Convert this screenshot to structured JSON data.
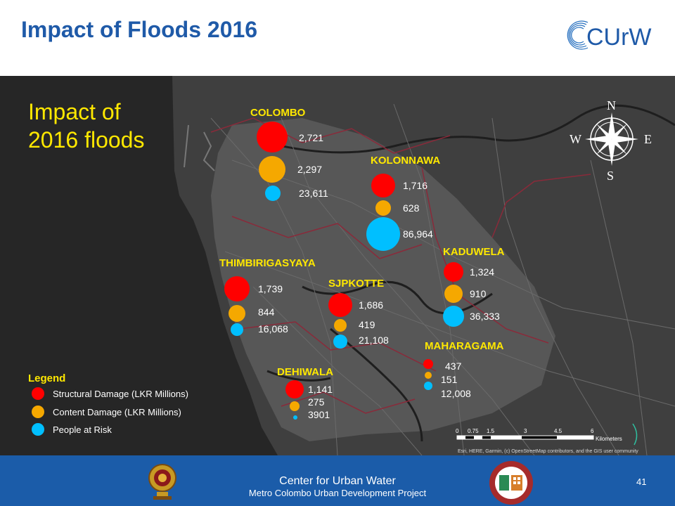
{
  "slide": {
    "title": "Impact of Floods 2016",
    "logo_text": "CUrW",
    "page_number": "41"
  },
  "map": {
    "heading_line1": "Impact of",
    "heading_line2": "2016 floods",
    "compass": {
      "n": "N",
      "s": "S",
      "e": "E",
      "w": "W"
    },
    "regions": [
      {
        "name": "COLOMBO",
        "structural": "2,721",
        "content": "2,297",
        "people": "23,611"
      },
      {
        "name": "KOLONNAWA",
        "structural": "1,716",
        "content": "628",
        "people": "86,964"
      },
      {
        "name": "KADUWELA",
        "structural": "1,324",
        "content": "910",
        "people": "36,333"
      },
      {
        "name": "THIMBIRIGASYAYA",
        "structural": "1,739",
        "content": "844",
        "people": "16,068"
      },
      {
        "name": "SJPKOTTE",
        "structural": "1,686",
        "content": "419",
        "people": "21,108"
      },
      {
        "name": "MAHARAGAMA",
        "structural": "437",
        "content": "151",
        "people": "12,008"
      },
      {
        "name": "DEHIWALA",
        "structural": "1,141",
        "content": "275",
        "people": "3901"
      }
    ],
    "legend": {
      "title": "Legend",
      "items": [
        {
          "label": "Structural Damage (LKR Millions)",
          "color": "#ff0000"
        },
        {
          "label": "Content Damage (LKR Millions)",
          "color": "#ffa500"
        },
        {
          "label": "People at Risk",
          "color": "#00bfff"
        }
      ]
    },
    "scalebar": {
      "ticks": [
        "0",
        "0.75",
        "1.5",
        "3",
        "4.5",
        "6"
      ],
      "unit": "Kilometers"
    },
    "attribution": "Esri, HERE, Garmin, (c) OpenStreetMap contributors, and the GIS user community",
    "colors": {
      "structural": "#ff0000",
      "content": "#f5a800",
      "people": "#00bfff",
      "label": "#ffe800"
    }
  },
  "footer": {
    "line1": "Center for Urban Water",
    "line2": "Metro Colombo Urban Development Project"
  }
}
